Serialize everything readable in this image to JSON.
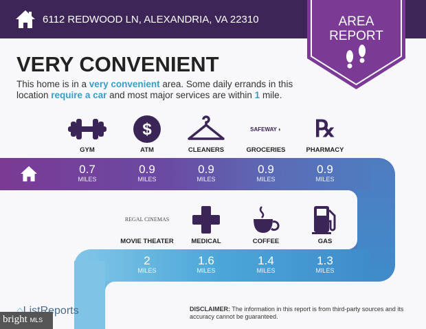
{
  "header": {
    "address": "6112 REDWOOD LN, ALEXANDRIA, VA 22310",
    "badge_line1": "AREA",
    "badge_line2": "REPORT"
  },
  "title": "VERY CONVENIENT",
  "description": {
    "p1": "This home is in a ",
    "h1": "very convenient",
    "p2": " area. Some daily errands in this location ",
    "h2": "require a car",
    "p3": " and most major services are within ",
    "h3": "1",
    "p4": " mile."
  },
  "row1": [
    {
      "label": "GYM",
      "icon": "dumbbell-icon",
      "value": "0.7",
      "unit": "MILES"
    },
    {
      "label": "ATM",
      "icon": "dollar-icon",
      "value": "0.9",
      "unit": "MILES"
    },
    {
      "label": "CLEANERS",
      "icon": "hanger-icon",
      "value": "0.9",
      "unit": "MILES"
    },
    {
      "label": "GROCERIES",
      "icon": "safeway-logo",
      "logo_text": "SAFEWAY",
      "value": "0.9",
      "unit": "MILES"
    },
    {
      "label": "PHARMACY",
      "icon": "rx-icon",
      "value": "0.9",
      "unit": "MILES"
    }
  ],
  "row2": [
    {
      "label": "MOVIE THEATER",
      "icon": "regal-cinemas-logo",
      "logo_text": "REGAL CINEMAS",
      "value": "2",
      "unit": "MILES"
    },
    {
      "label": "MEDICAL",
      "icon": "medical-cross-icon",
      "value": "1.6",
      "unit": "MILES"
    },
    {
      "label": "COFFEE",
      "icon": "coffee-icon",
      "value": "1.4",
      "unit": "MILES"
    },
    {
      "label": "GAS",
      "icon": "gas-pump-icon",
      "value": "1.3",
      "unit": "MILES"
    }
  ],
  "footer": {
    "brand": "ListReports",
    "disclaimer_label": "DISCLAIMER:",
    "disclaimer_text": " The information in this report is from third-party sources and its accuracy cannot be guaranteed.",
    "watermark": "bright",
    "watermark_sub": "MLS"
  },
  "colors": {
    "header": "#3d2558",
    "badge": "#7b3a96",
    "icon": "#3b2557",
    "accent": "#3a9ec4"
  }
}
